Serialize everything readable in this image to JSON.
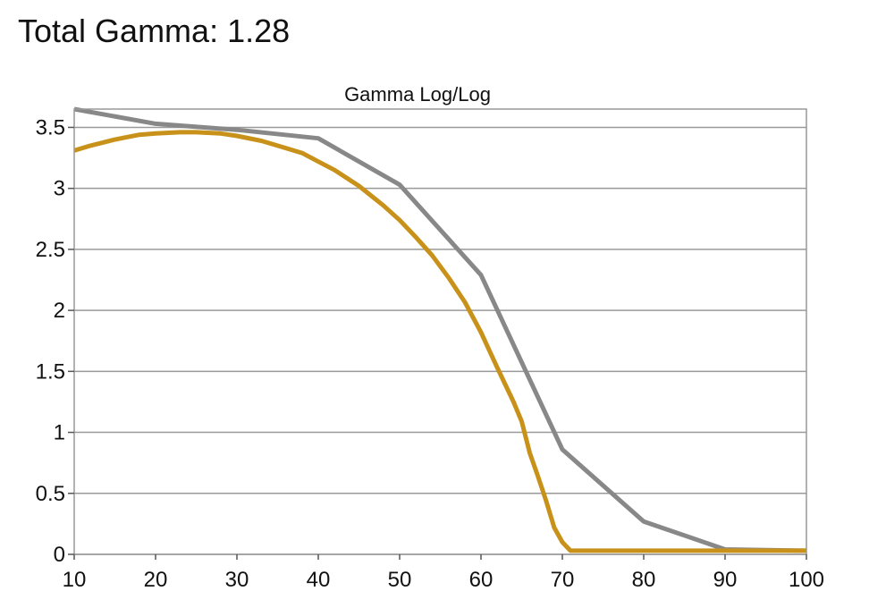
{
  "header": {
    "headline": "Total Gamma: 1.28"
  },
  "chart_data": {
    "type": "line",
    "title": "Gamma Log/Log",
    "xlabel": "",
    "ylabel": "",
    "xlim": [
      10,
      100
    ],
    "ylim": [
      0,
      3.65
    ],
    "x_ticks": [
      10,
      20,
      30,
      40,
      50,
      60,
      70,
      80,
      90,
      100
    ],
    "y_ticks": [
      0,
      0.5,
      1,
      1.5,
      2,
      2.5,
      3,
      3.5
    ],
    "y_tick_labels": [
      "0",
      "0.5",
      "1",
      "1.5",
      "2",
      "2.5",
      "3",
      "3.5"
    ],
    "grid": "horizontal",
    "legend": "none",
    "series": [
      {
        "color": "#888888",
        "x": [
          10,
          20,
          30,
          40,
          50,
          60,
          70,
          80,
          90,
          100
        ],
        "y": [
          3.65,
          3.53,
          3.48,
          3.41,
          3.03,
          2.29,
          0.86,
          0.27,
          0.04,
          0.03
        ]
      },
      {
        "color": "#C8921A",
        "x": [
          10,
          12,
          15,
          18,
          20,
          23,
          25,
          28,
          30,
          33,
          35,
          38,
          40,
          42,
          45,
          48,
          50,
          52,
          54,
          56,
          58,
          60,
          62,
          64,
          65,
          66,
          67,
          68,
          69,
          70,
          71,
          80,
          90,
          100
        ],
        "y": [
          3.31,
          3.35,
          3.4,
          3.44,
          3.45,
          3.46,
          3.46,
          3.45,
          3.43,
          3.39,
          3.35,
          3.29,
          3.22,
          3.15,
          3.02,
          2.86,
          2.74,
          2.6,
          2.45,
          2.27,
          2.07,
          1.82,
          1.53,
          1.25,
          1.09,
          0.83,
          0.64,
          0.44,
          0.22,
          0.1,
          0.03,
          0.03,
          0.03,
          0.03
        ]
      }
    ]
  }
}
